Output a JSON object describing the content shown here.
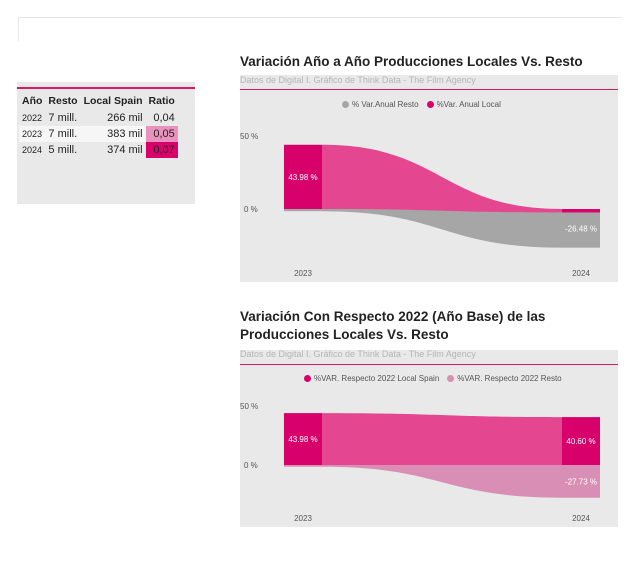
{
  "table": {
    "headers": [
      "Año",
      "Resto",
      "Local Spain",
      "Ratio"
    ],
    "rows": [
      {
        "year": "2022",
        "resto": "7 mill.",
        "local": "266 mil",
        "ratio": "0,04",
        "ratio_color": "#e9e9e9"
      },
      {
        "year": "2023",
        "resto": "7 mill.",
        "local": "383 mil",
        "ratio": "0,05",
        "ratio_color": "#e892bd"
      },
      {
        "year": "2024",
        "resto": "5 mill.",
        "local": "374 mil",
        "ratio": "0,07",
        "ratio_color": "#d8006b"
      }
    ]
  },
  "colors": {
    "local": "#d8006b",
    "local_light": "#e4478f",
    "resto": "#a6a6a6",
    "resto2": "#d98fb5",
    "accent": "#d81b60"
  },
  "chart_data": [
    {
      "type": "area",
      "title": "Variación Año a Año Producciones Locales Vs. Resto",
      "subtitle": "Datos de Digital I. Gráfico de Think Data - The Film Agency",
      "x": [
        "2023",
        "2024"
      ],
      "y_ticks": [
        "50 %",
        "0 %"
      ],
      "ylim": [
        -50,
        50
      ],
      "series": [
        {
          "name": "% Var.Anual Resto",
          "values": [
            -1.5,
            -26.48
          ]
        },
        {
          "name": "%Var. Anual Local",
          "values": [
            43.98,
            -2.35
          ]
        }
      ],
      "data_labels": [
        "43.98 %",
        "-26.48 %"
      ],
      "legend": "top"
    },
    {
      "type": "area",
      "title": "Variación Con Respecto 2022 (Año Base) de las Producciones Locales Vs. Resto",
      "subtitle": "Datos de Digital I. Gráfico de Think Data - The Film Agency",
      "x": [
        "2023",
        "2024"
      ],
      "y_ticks": [
        "50 %",
        "0 %"
      ],
      "ylim": [
        -50,
        50
      ],
      "series": [
        {
          "name": "%VAR. Respecto 2022 Local Spain",
          "values": [
            43.98,
            40.6
          ]
        },
        {
          "name": "%VAR. Respecto 2022 Resto",
          "values": [
            -1.5,
            -27.73
          ]
        }
      ],
      "data_labels": [
        "43.98 %",
        "40.60 %",
        "-27.73 %"
      ],
      "legend": "top"
    }
  ]
}
